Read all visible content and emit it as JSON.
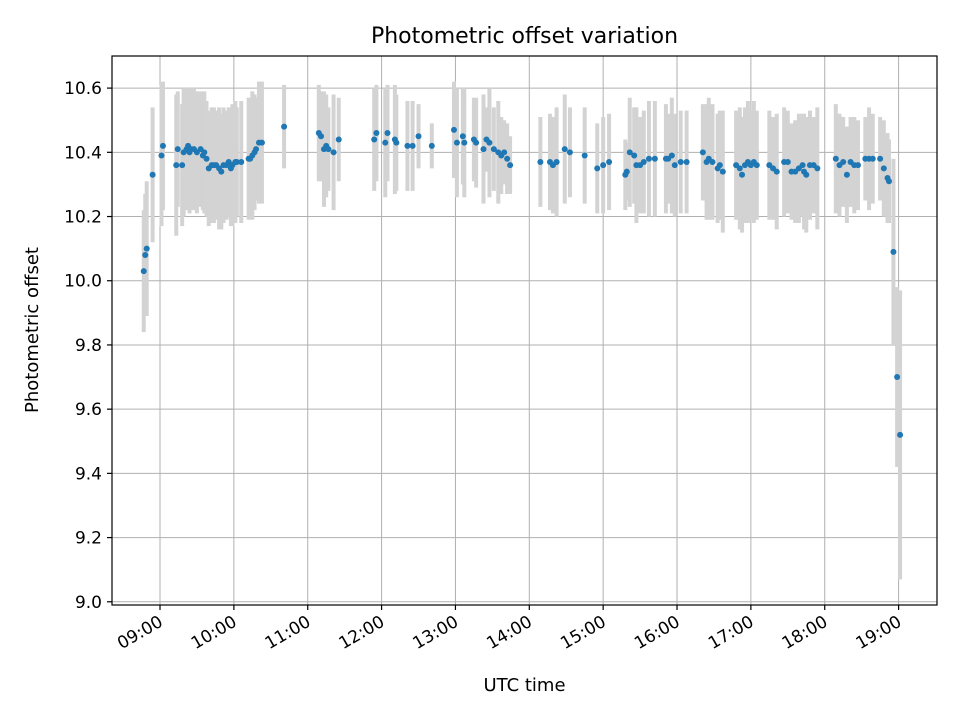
{
  "chart_data": {
    "type": "scatter",
    "title": "Photometric offset variation",
    "xlabel": "UTC time",
    "ylabel": "Photometric offset",
    "xlim": [
      8.35,
      19.52
    ],
    "ylim": [
      8.99,
      10.7
    ],
    "grid": true,
    "x_ticks": [
      {
        "value": 9,
        "label": "09:00"
      },
      {
        "value": 10,
        "label": "10:00"
      },
      {
        "value": 11,
        "label": "11:00"
      },
      {
        "value": 12,
        "label": "12:00"
      },
      {
        "value": 13,
        "label": "13:00"
      },
      {
        "value": 14,
        "label": "14:00"
      },
      {
        "value": 15,
        "label": "15:00"
      },
      {
        "value": 16,
        "label": "16:00"
      },
      {
        "value": 17,
        "label": "17:00"
      },
      {
        "value": 18,
        "label": "18:00"
      },
      {
        "value": 19,
        "label": "19:00"
      }
    ],
    "y_ticks": [
      {
        "value": 9.0,
        "label": "9.0"
      },
      {
        "value": 9.2,
        "label": "9.2"
      },
      {
        "value": 9.4,
        "label": "9.4"
      },
      {
        "value": 9.6,
        "label": "9.6"
      },
      {
        "value": 9.8,
        "label": "9.8"
      },
      {
        "value": 10.0,
        "label": "10.0"
      },
      {
        "value": 10.2,
        "label": "10.2"
      },
      {
        "value": 10.4,
        "label": "10.4"
      },
      {
        "value": 10.6,
        "label": "10.6"
      }
    ],
    "marker_color": "#1f77b4",
    "errorbar_color": "#d3d3d3",
    "series": [
      {
        "name": "Photometric offset",
        "x": [
          8.78,
          8.8,
          8.82,
          8.9,
          9.02,
          9.04,
          9.22,
          9.24,
          9.3,
          9.32,
          9.36,
          9.38,
          9.4,
          9.42,
          9.46,
          9.5,
          9.55,
          9.58,
          9.6,
          9.63,
          9.66,
          9.7,
          9.73,
          9.76,
          9.8,
          9.83,
          9.86,
          9.9,
          9.93,
          9.96,
          9.98,
          10.02,
          10.04,
          10.1,
          10.2,
          10.22,
          10.25,
          10.28,
          10.3,
          10.34,
          10.38,
          10.68,
          11.15,
          11.18,
          11.22,
          11.25,
          11.28,
          11.35,
          11.42,
          11.9,
          11.93,
          12.05,
          12.08,
          12.18,
          12.2,
          12.35,
          12.42,
          12.5,
          12.68,
          12.98,
          13.02,
          13.1,
          13.12,
          13.25,
          13.28,
          13.38,
          13.42,
          13.46,
          13.52,
          13.58,
          13.62,
          13.66,
          13.7,
          13.74,
          14.15,
          14.28,
          14.32,
          14.37,
          14.48,
          14.55,
          14.75,
          14.92,
          15.0,
          15.08,
          15.3,
          15.32,
          15.36,
          15.42,
          15.45,
          15.5,
          15.55,
          15.62,
          15.7,
          15.85,
          15.88,
          15.93,
          15.97,
          16.05,
          16.13,
          16.35,
          16.4,
          16.43,
          16.48,
          16.55,
          16.58,
          16.62,
          16.8,
          16.85,
          16.88,
          16.92,
          16.96,
          17.0,
          17.04,
          17.08,
          17.25,
          17.3,
          17.35,
          17.45,
          17.5,
          17.55,
          17.6,
          17.65,
          17.7,
          17.72,
          17.75,
          17.8,
          17.85,
          17.9,
          18.15,
          18.2,
          18.25,
          18.3,
          18.35,
          18.4,
          18.45,
          18.55,
          18.6,
          18.65,
          18.75,
          18.8,
          18.85,
          18.87,
          18.93,
          18.98,
          19.02
        ],
        "y": [
          10.03,
          10.08,
          10.1,
          10.33,
          10.39,
          10.42,
          10.36,
          10.41,
          10.36,
          10.4,
          10.41,
          10.42,
          10.4,
          10.41,
          10.41,
          10.4,
          10.41,
          10.39,
          10.4,
          10.38,
          10.35,
          10.36,
          10.36,
          10.36,
          10.35,
          10.34,
          10.36,
          10.36,
          10.37,
          10.35,
          10.36,
          10.37,
          10.37,
          10.37,
          10.38,
          10.38,
          10.39,
          10.4,
          10.41,
          10.43,
          10.43,
          10.48,
          10.46,
          10.45,
          10.41,
          10.42,
          10.41,
          10.4,
          10.44,
          10.44,
          10.46,
          10.43,
          10.46,
          10.44,
          10.43,
          10.42,
          10.42,
          10.45,
          10.42,
          10.47,
          10.43,
          10.45,
          10.43,
          10.44,
          10.43,
          10.41,
          10.44,
          10.43,
          10.41,
          10.4,
          10.39,
          10.4,
          10.38,
          10.36,
          10.37,
          10.37,
          10.36,
          10.37,
          10.41,
          10.4,
          10.39,
          10.35,
          10.36,
          10.37,
          10.33,
          10.34,
          10.4,
          10.39,
          10.36,
          10.36,
          10.37,
          10.38,
          10.38,
          10.38,
          10.38,
          10.39,
          10.36,
          10.37,
          10.37,
          10.4,
          10.37,
          10.38,
          10.37,
          10.35,
          10.36,
          10.34,
          10.36,
          10.35,
          10.33,
          10.36,
          10.37,
          10.36,
          10.37,
          10.36,
          10.36,
          10.35,
          10.34,
          10.37,
          10.37,
          10.34,
          10.34,
          10.35,
          10.36,
          10.34,
          10.33,
          10.36,
          10.36,
          10.35,
          10.38,
          10.36,
          10.37,
          10.33,
          10.37,
          10.36,
          10.36,
          10.38,
          10.38,
          10.38,
          10.38,
          10.35,
          10.32,
          10.31,
          10.09,
          9.7,
          9.52
        ],
        "yerr": [
          0.19,
          0.19,
          0.21,
          0.21,
          0.22,
          0.2,
          0.22,
          0.18,
          0.19,
          0.2,
          0.19,
          0.18,
          0.19,
          0.19,
          0.19,
          0.19,
          0.18,
          0.17,
          0.19,
          0.18,
          0.18,
          0.18,
          0.18,
          0.17,
          0.19,
          0.18,
          0.18,
          0.17,
          0.17,
          0.18,
          0.19,
          0.19,
          0.17,
          0.19,
          0.19,
          0.16,
          0.2,
          0.18,
          0.16,
          0.19,
          0.19,
          0.13,
          0.15,
          0.14,
          0.18,
          0.16,
          0.13,
          0.18,
          0.13,
          0.16,
          0.15,
          0.17,
          0.15,
          0.17,
          0.15,
          0.14,
          0.14,
          0.1,
          0.07,
          0.15,
          0.17,
          0.15,
          0.17,
          0.13,
          0.14,
          0.17,
          0.1,
          0.17,
          0.13,
          0.16,
          0.12,
          0.1,
          0.11,
          0.09,
          0.14,
          0.15,
          0.15,
          0.17,
          0.17,
          0.14,
          0.15,
          0.14,
          0.15,
          0.15,
          0.11,
          0.09,
          0.17,
          0.15,
          0.18,
          0.15,
          0.16,
          0.18,
          0.18,
          0.17,
          0.14,
          0.18,
          0.16,
          0.16,
          0.16,
          0.15,
          0.18,
          0.19,
          0.18,
          0.17,
          0.17,
          0.19,
          0.17,
          0.19,
          0.18,
          0.18,
          0.19,
          0.17,
          0.19,
          0.17,
          0.17,
          0.16,
          0.18,
          0.17,
          0.16,
          0.15,
          0.16,
          0.17,
          0.16,
          0.18,
          0.18,
          0.17,
          0.15,
          0.19,
          0.17,
          0.16,
          0.14,
          0.15,
          0.14,
          0.15,
          0.14,
          0.13,
          0.16,
          0.14,
          0.13,
          0.15,
          0.14,
          0.13,
          0.29,
          0.28,
          0.45
        ]
      }
    ]
  }
}
